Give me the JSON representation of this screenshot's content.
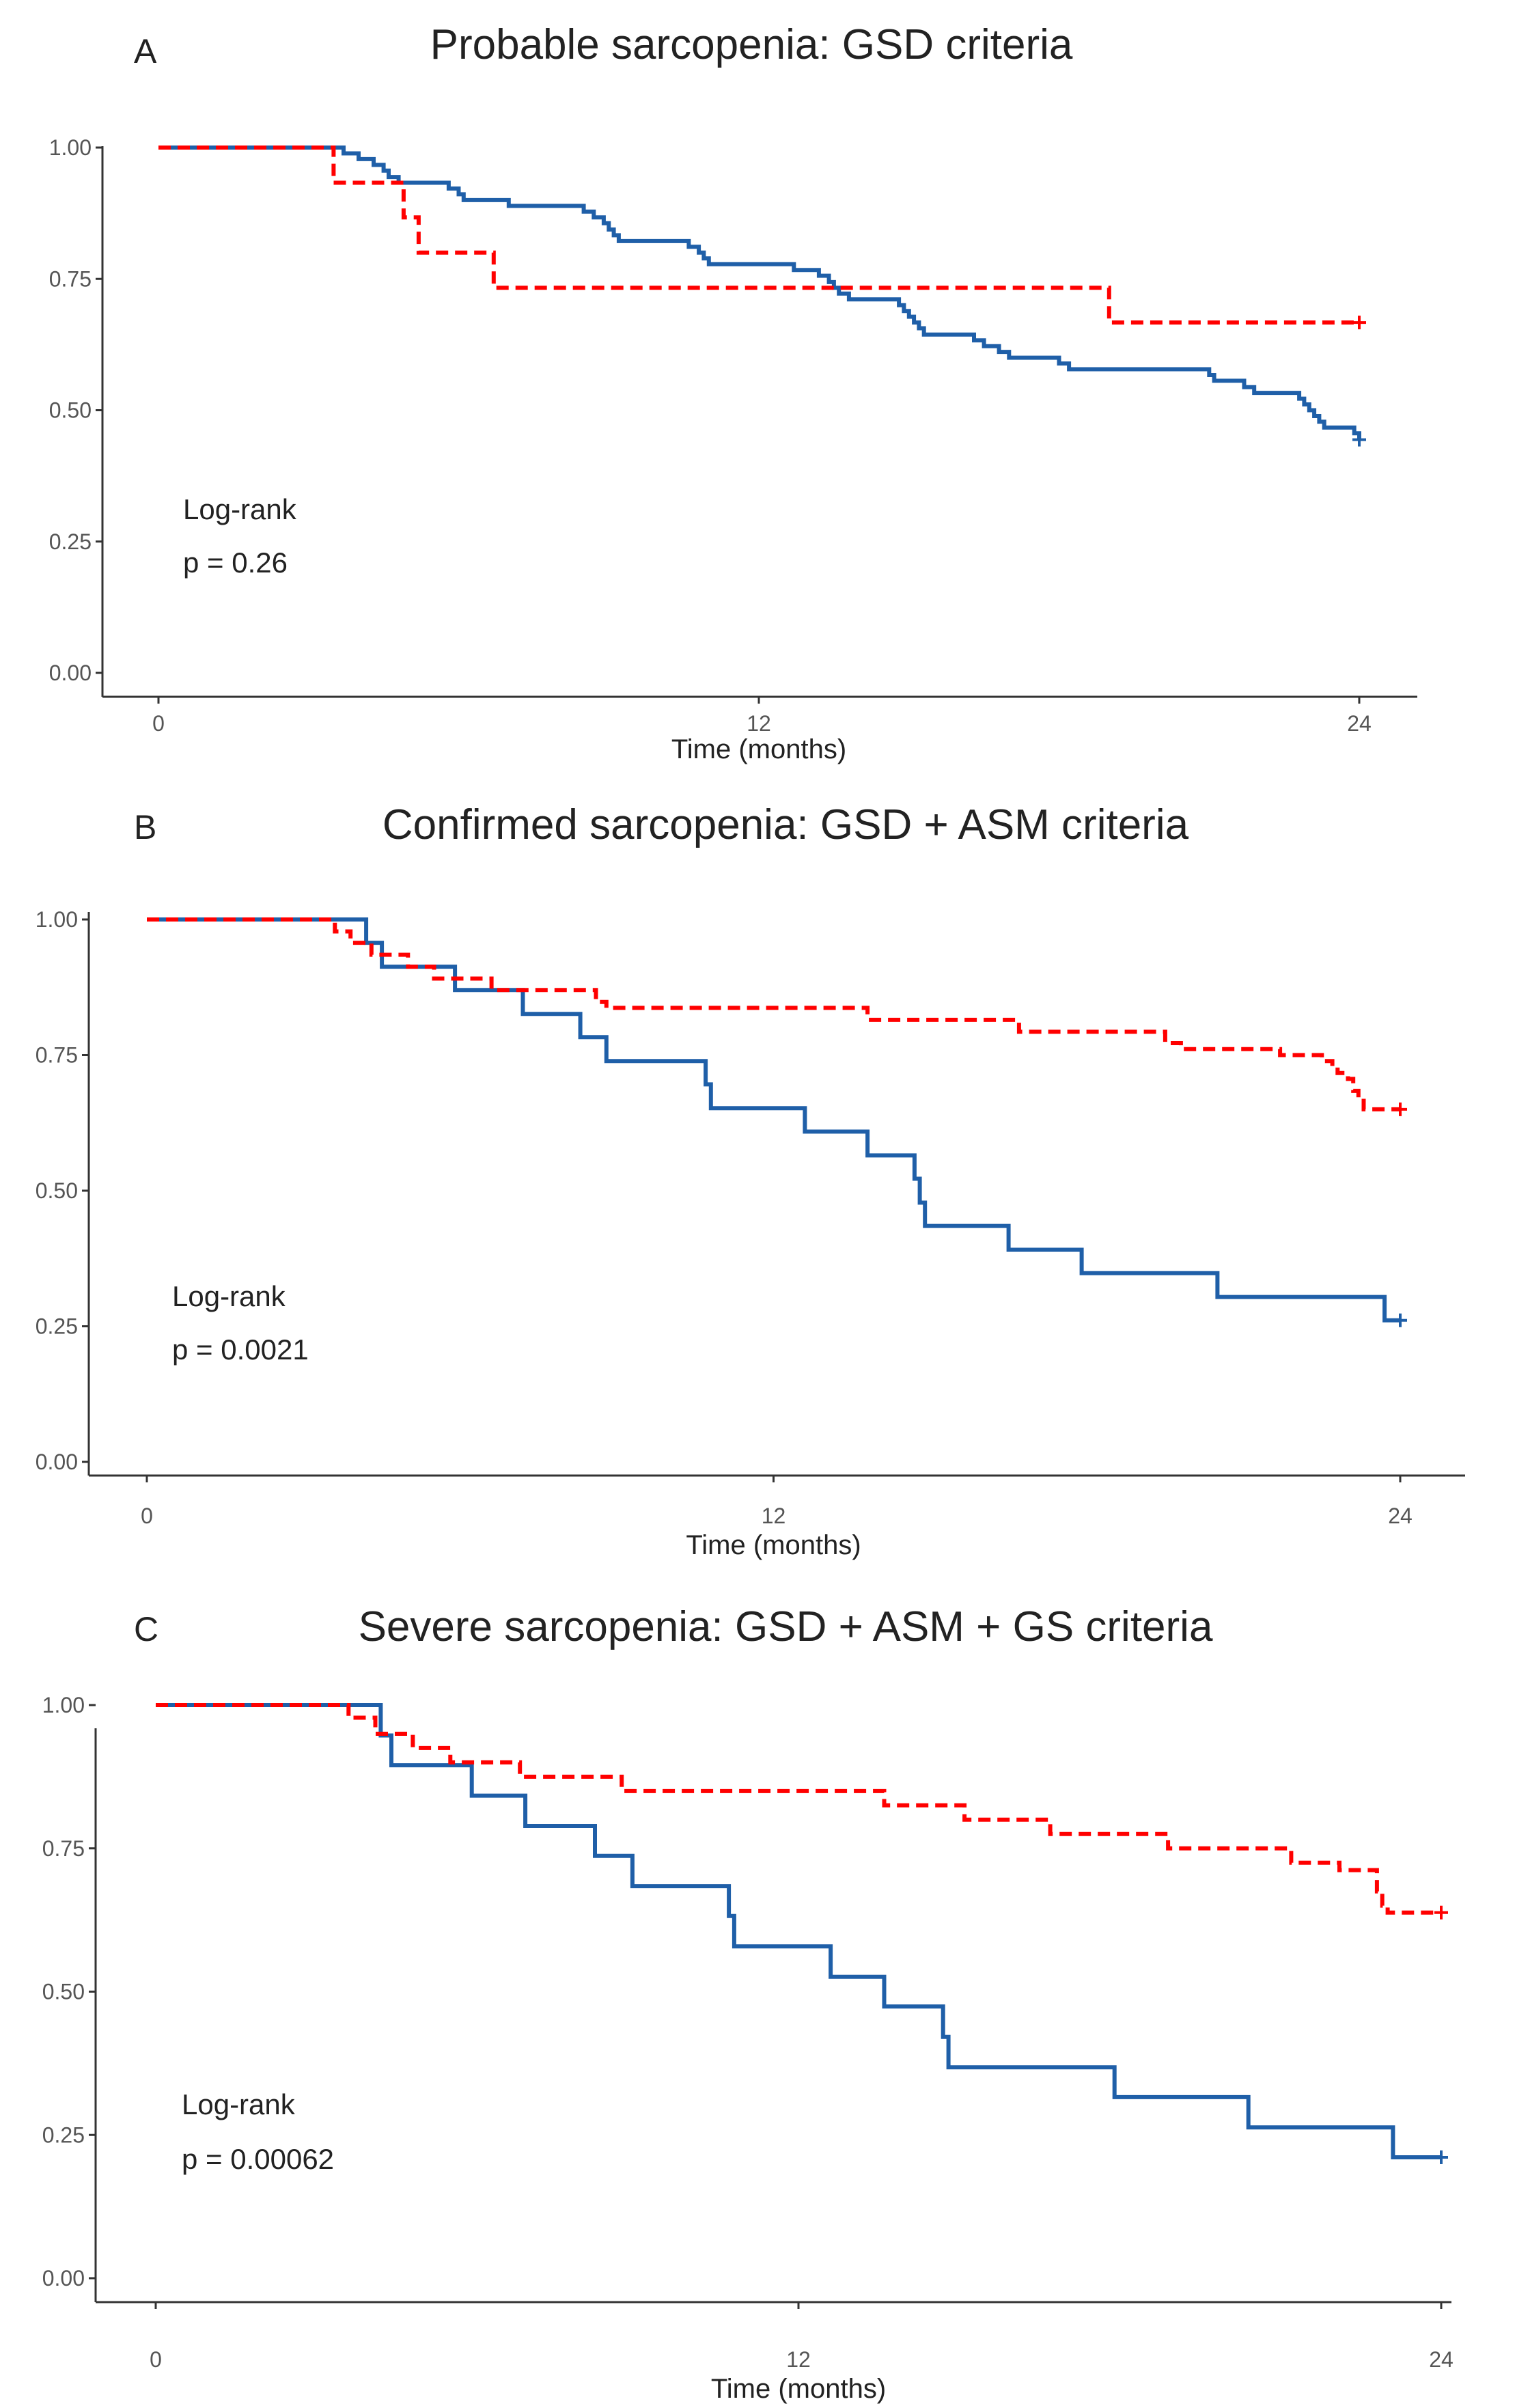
{
  "chart_data": [
    {
      "type": "line",
      "panel_letter": "A",
      "title": "Probable sarcopenia: GSD criteria",
      "xlabel": "Time (months)",
      "ylabel": "",
      "xlim": [
        0,
        24
      ],
      "ylim": [
        0,
        1
      ],
      "x_ticks": [
        "0",
        "12",
        "24"
      ],
      "y_ticks": [
        "0.00",
        "0.25",
        "0.50",
        "0.75",
        "1.00"
      ],
      "annotation": [
        "Log-rank",
        "p = 0.26"
      ],
      "series": [
        {
          "name": "red-dashed",
          "color": "#ff0000",
          "dashed": true,
          "steps": [
            [
              0,
              1.0
            ],
            [
              3.5,
              0.933
            ],
            [
              4.9,
              0.867
            ],
            [
              5.2,
              0.8
            ],
            [
              6.7,
              0.733
            ],
            [
              19.0,
              0.667
            ],
            [
              24,
              0.667
            ]
          ]
        },
        {
          "name": "blue-solid",
          "color": "#1f5fa8",
          "dashed": false,
          "steps": [
            [
              0,
              1.0
            ],
            [
              3.7,
              0.989
            ],
            [
              4.0,
              0.978
            ],
            [
              4.3,
              0.967
            ],
            [
              4.5,
              0.956
            ],
            [
              4.6,
              0.944
            ],
            [
              4.8,
              0.933
            ],
            [
              5.8,
              0.922
            ],
            [
              6.0,
              0.911
            ],
            [
              6.1,
              0.9
            ],
            [
              7.0,
              0.889
            ],
            [
              8.5,
              0.878
            ],
            [
              8.7,
              0.867
            ],
            [
              8.9,
              0.856
            ],
            [
              9.0,
              0.844
            ],
            [
              9.1,
              0.833
            ],
            [
              9.2,
              0.822
            ],
            [
              10.6,
              0.811
            ],
            [
              10.8,
              0.8
            ],
            [
              10.9,
              0.789
            ],
            [
              11.0,
              0.778
            ],
            [
              12.7,
              0.767
            ],
            [
              13.2,
              0.756
            ],
            [
              13.4,
              0.744
            ],
            [
              13.5,
              0.733
            ],
            [
              13.6,
              0.722
            ],
            [
              13.8,
              0.711
            ],
            [
              14.8,
              0.7
            ],
            [
              14.9,
              0.689
            ],
            [
              15.0,
              0.678
            ],
            [
              15.1,
              0.667
            ],
            [
              15.2,
              0.656
            ],
            [
              15.3,
              0.644
            ],
            [
              16.3,
              0.633
            ],
            [
              16.5,
              0.622
            ],
            [
              16.8,
              0.611
            ],
            [
              17.0,
              0.6
            ],
            [
              18.0,
              0.589
            ],
            [
              18.2,
              0.578
            ],
            [
              21.0,
              0.567
            ],
            [
              21.1,
              0.556
            ],
            [
              21.7,
              0.544
            ],
            [
              21.9,
              0.533
            ],
            [
              22.8,
              0.522
            ],
            [
              22.9,
              0.511
            ],
            [
              23.0,
              0.5
            ],
            [
              23.1,
              0.489
            ],
            [
              23.2,
              0.478
            ],
            [
              23.3,
              0.467
            ],
            [
              23.9,
              0.456
            ],
            [
              24,
              0.444
            ]
          ]
        }
      ]
    },
    {
      "type": "line",
      "panel_letter": "B",
      "title": "Confirmed sarcopenia: GSD + ASM criteria",
      "xlabel": "Time (months)",
      "ylabel": "",
      "xlim": [
        0,
        24
      ],
      "ylim": [
        0,
        1
      ],
      "x_ticks": [
        "0",
        "12",
        "24"
      ],
      "y_ticks": [
        "0.00",
        "0.25",
        "0.50",
        "0.75",
        "1.00"
      ],
      "annotation": [
        "Log-rank",
        "p = 0.0021"
      ],
      "series": [
        {
          "name": "red-dashed",
          "color": "#ff0000",
          "dashed": true,
          "steps": [
            [
              0,
              1.0
            ],
            [
              3.6,
              0.978
            ],
            [
              3.9,
              0.957
            ],
            [
              4.3,
              0.935
            ],
            [
              5.0,
              0.913
            ],
            [
              5.5,
              0.891
            ],
            [
              6.6,
              0.87
            ],
            [
              8.6,
              0.848
            ],
            [
              10.0,
              0.848
            ],
            [
              8.6,
              0.848
            ],
            [
              8.7,
              0.848
            ],
            [
              8.8,
              0.848
            ],
            [
              9.0,
              0.848
            ],
            [
              8.9,
              0.848
            ],
            [
              8.6,
              0.848
            ],
            [
              8.5,
              0.848
            ],
            [
              8.7,
              0.848
            ],
            [
              9.0,
              0.848
            ],
            [
              8.6,
              0.848
            ],
            [
              8.6,
              0.848
            ],
            [
              8.6,
              0.848
            ],
            [
              8.6,
              0.848
            ],
            [
              8.6,
              0.848
            ],
            [
              8.6,
              0.848
            ],
            [
              8.6,
              0.848
            ],
            [
              8.6,
              0.848
            ],
            [
              8.6,
              0.848
            ],
            [
              8.6,
              0.848
            ],
            [
              8.6,
              0.848
            ]
          ]
        }
      ]
    }
  ]
}
